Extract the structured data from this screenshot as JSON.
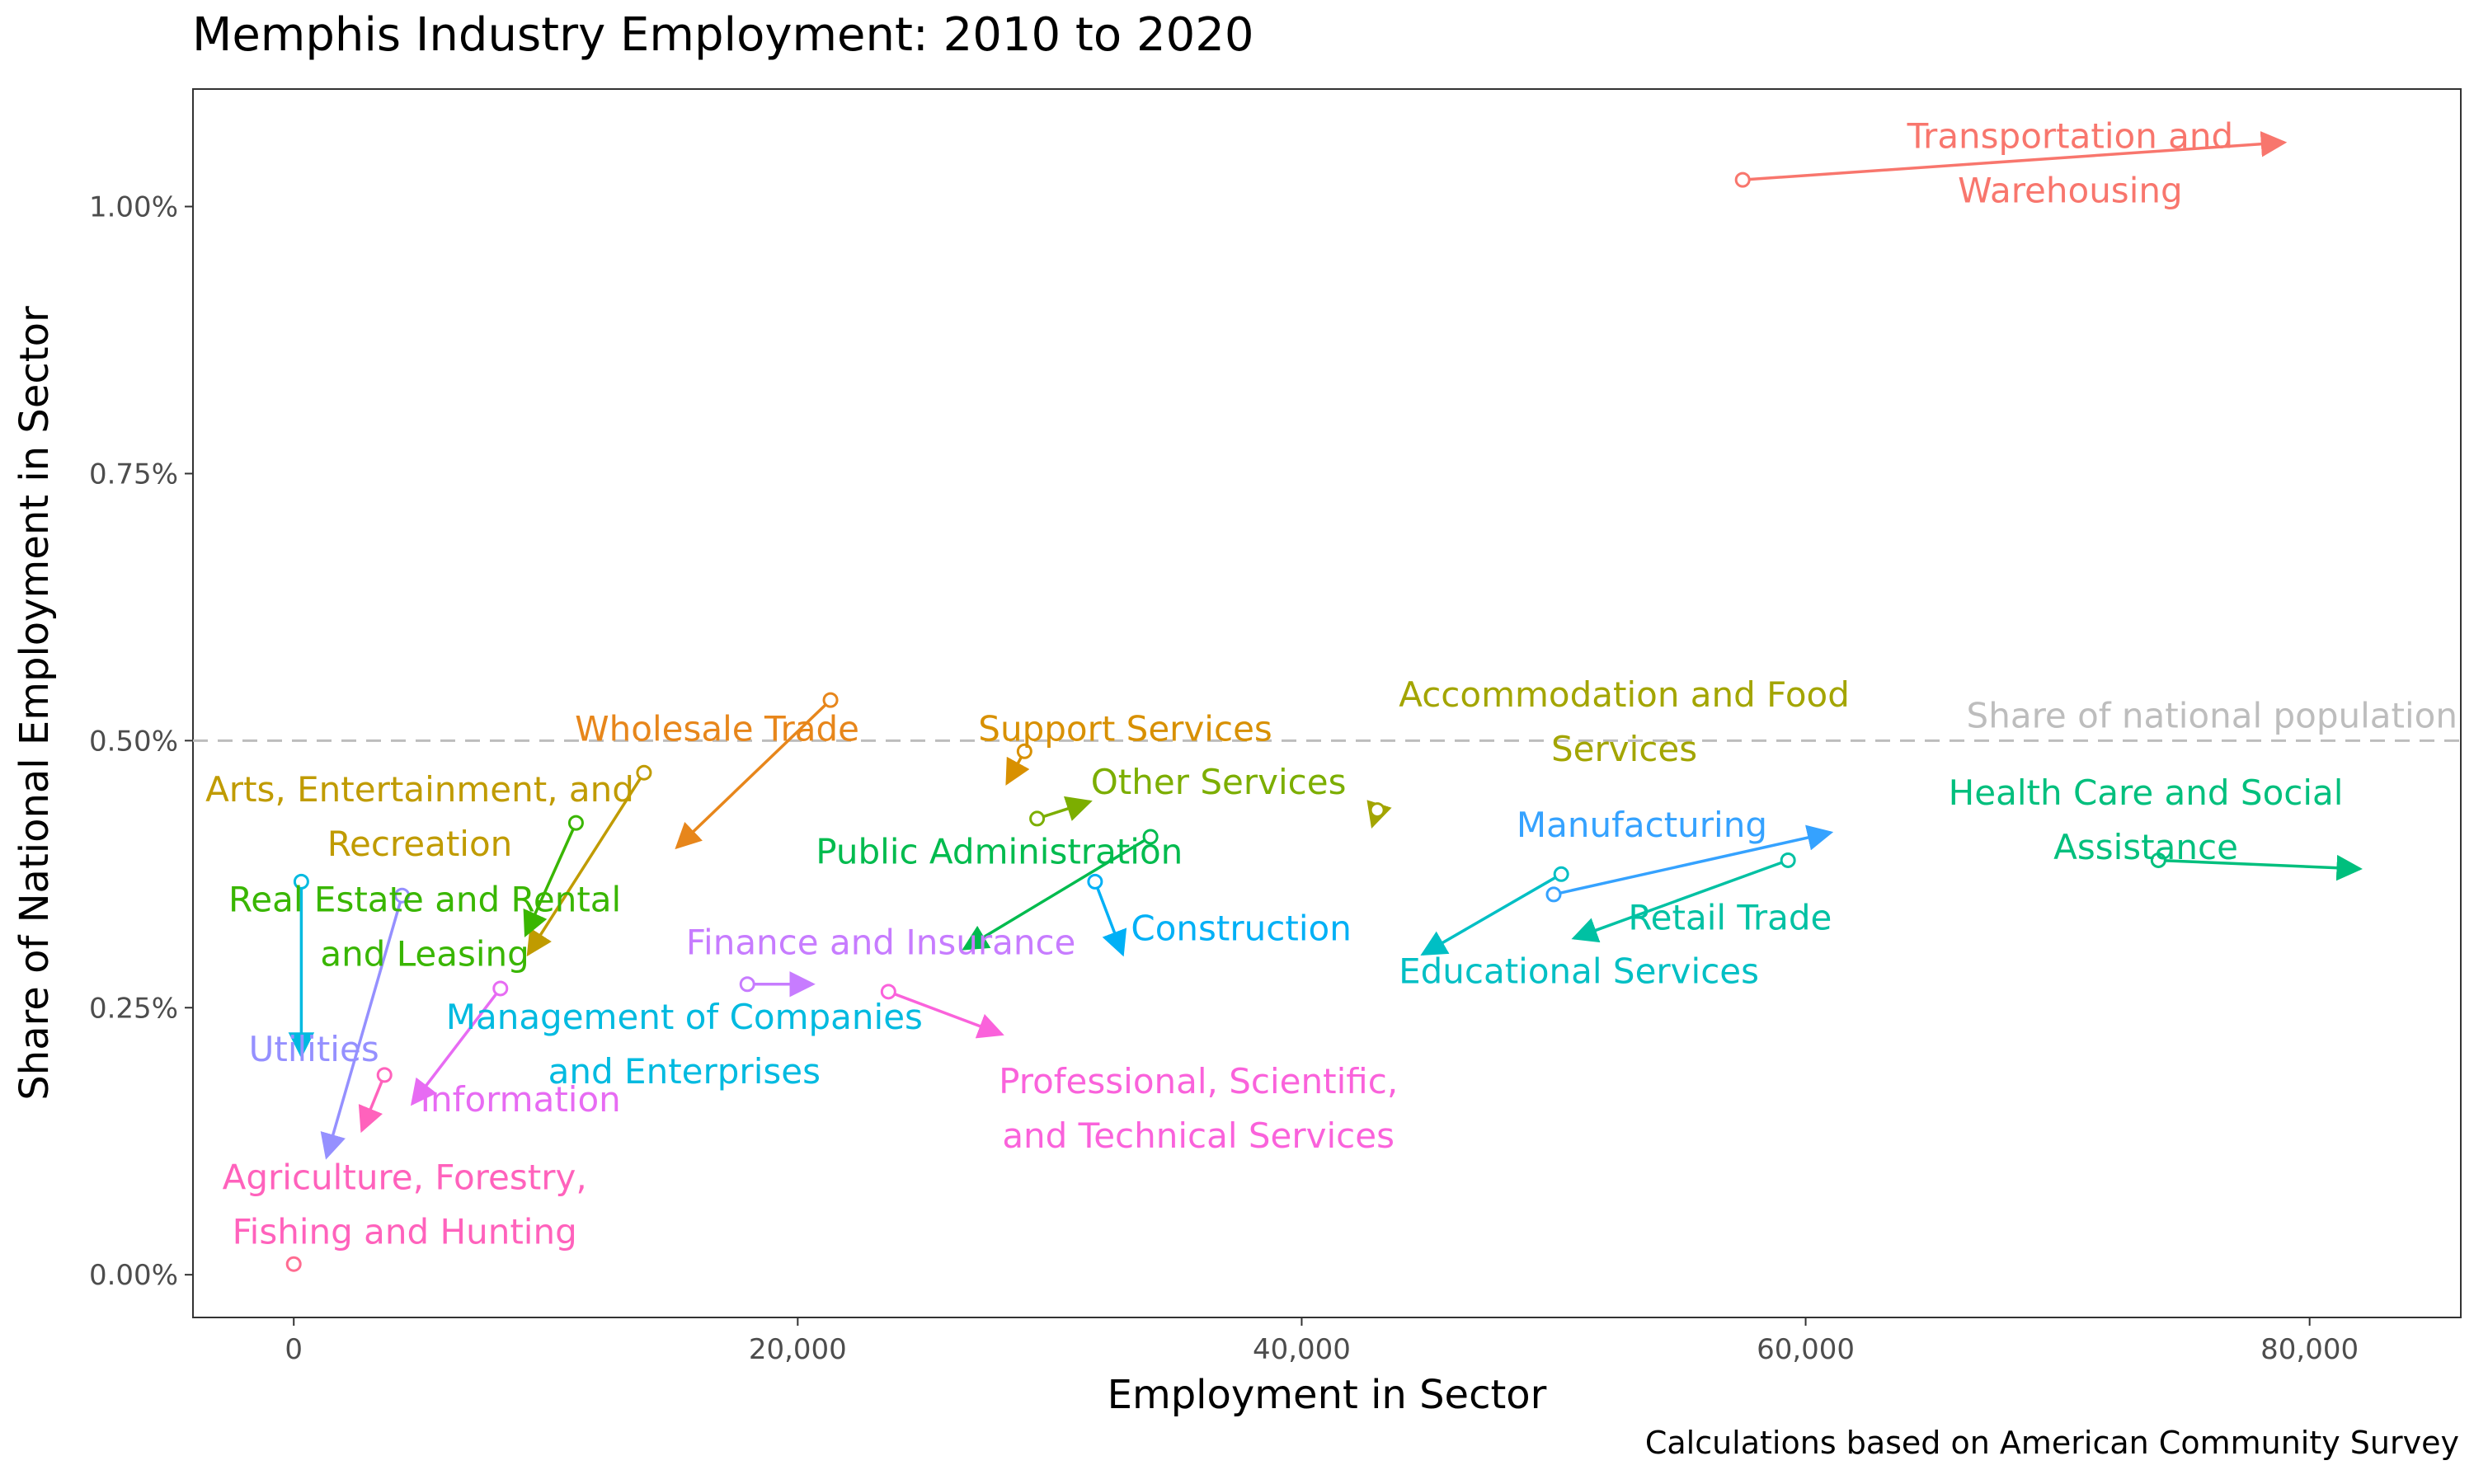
{
  "chart_data": {
    "type": "scatter",
    "title": "Memphis Industry Employment: 2010 to 2020",
    "caption": "Calculations based on American Community Survey",
    "xlabel": "Employment in Sector",
    "ylabel": "Share of National Employment in Sector",
    "xlim": [
      -4000,
      86000
    ],
    "ylim": [
      -0.04,
      1.11
    ],
    "x_ticks": [
      0,
      20000,
      40000,
      60000,
      80000
    ],
    "x_tick_labels": [
      "0",
      "20,000",
      "40,000",
      "60,000",
      "80,000"
    ],
    "y_ticks": [
      0,
      0.25,
      0.5,
      0.75,
      1.0
    ],
    "y_tick_labels": [
      "0.00%",
      "0.25%",
      "0.50%",
      "0.75%",
      "1.00%"
    ],
    "y_unit": "percent",
    "grid": false,
    "reference_line": {
      "y": 0.5,
      "label": "Share of national population",
      "color": "#bdbdbd"
    },
    "series": [
      {
        "name": "Transportation and Warehousing",
        "color": "#F8766D",
        "x2010": 57500,
        "y2010": 1.025,
        "x2020": 79000,
        "y2020": 1.06,
        "label_lines": [
          "Transportation and",
          "Warehousing"
        ],
        "label_x": 70500,
        "label_y": 1.055
      },
      {
        "name": "Wholesale Trade",
        "color": "#E7861B",
        "x2010": 21300,
        "y2010": 0.538,
        "x2020": 15200,
        "y2020": 0.4,
        "label_lines": [
          "Wholesale Trade"
        ],
        "label_x": 16800,
        "label_y": 0.5
      },
      {
        "name": "Support Services",
        "color": "#D89000",
        "x2010": 29000,
        "y2010": 0.49,
        "x2020": 28300,
        "y2020": 0.46,
        "label_lines": [
          "Support Services"
        ],
        "label_x": 33000,
        "label_y": 0.5
      },
      {
        "name": "Arts, Entertainment, and Recreation",
        "color": "#C09B00",
        "x2010": 13900,
        "y2010": 0.47,
        "x2020": 9300,
        "y2020": 0.3,
        "label_lines": [
          "Arts, Entertainment, and",
          "Recreation"
        ],
        "label_x": 5000,
        "label_y": 0.443
      },
      {
        "name": "Accommodation and Food Services",
        "color": "#A3A500",
        "x2010": 43000,
        "y2010": 0.435,
        "x2020": 42800,
        "y2020": 0.42,
        "label_lines": [
          "Accommodation and Food",
          "Services"
        ],
        "label_x": 52800,
        "label_y": 0.532
      },
      {
        "name": "Other Services",
        "color": "#7CAE00",
        "x2010": 29500,
        "y2010": 0.427,
        "x2020": 31600,
        "y2020": 0.443,
        "label_lines": [
          "Other Services"
        ],
        "label_x": 36700,
        "label_y": 0.45
      },
      {
        "name": "Real Estate and Rental and Leasing",
        "color": "#39B600",
        "x2010": 11200,
        "y2010": 0.423,
        "x2020": 9200,
        "y2020": 0.318,
        "label_lines": [
          "Real Estate and Rental",
          "and Leasing"
        ],
        "label_x": 5200,
        "label_y": 0.34
      },
      {
        "name": "Public Administration",
        "color": "#00BB4E",
        "x2010": 34000,
        "y2010": 0.41,
        "x2020": 26600,
        "y2020": 0.305,
        "label_lines": [
          "Public Administration"
        ],
        "label_x": 28000,
        "label_y": 0.385
      },
      {
        "name": "Health Care and Social Assistance",
        "color": "#00BF7D",
        "x2010": 74000,
        "y2010": 0.388,
        "x2020": 82000,
        "y2020": 0.38,
        "label_lines": [
          "Health Care and Social",
          "Assistance"
        ],
        "label_x": 73500,
        "label_y": 0.44
      },
      {
        "name": "Retail Trade",
        "color": "#00C1A3",
        "x2010": 59300,
        "y2010": 0.388,
        "x2020": 50800,
        "y2020": 0.315,
        "label_lines": [
          "Retail Trade"
        ],
        "label_x": 57000,
        "label_y": 0.323
      },
      {
        "name": "Educational Services",
        "color": "#00BFC4",
        "x2010": 50300,
        "y2010": 0.375,
        "x2020": 44800,
        "y2020": 0.3,
        "label_lines": [
          "Educational Services"
        ],
        "label_x": 51000,
        "label_y": 0.273
      },
      {
        "name": "Management of Companies and Enterprises",
        "color": "#00BAE0",
        "x2010": 300,
        "y2010": 0.368,
        "x2020": 300,
        "y2020": 0.205,
        "label_lines": [
          "Management of Companies",
          "and Enterprises"
        ],
        "label_x": 15500,
        "label_y": 0.23
      },
      {
        "name": "Construction",
        "color": "#00B0F6",
        "x2010": 31800,
        "y2010": 0.368,
        "x2020": 32900,
        "y2020": 0.3,
        "label_lines": [
          "Construction"
        ],
        "label_x": 37600,
        "label_y": 0.313
      },
      {
        "name": "Manufacturing",
        "color": "#35A2FF",
        "x2010": 50000,
        "y2010": 0.356,
        "x2020": 61000,
        "y2020": 0.414,
        "label_lines": [
          "Manufacturing"
        ],
        "label_x": 53500,
        "label_y": 0.41
      },
      {
        "name": "Utilities",
        "color": "#9590FF",
        "x2010": 4300,
        "y2010": 0.355,
        "x2020": 1300,
        "y2020": 0.11,
        "label_lines": [
          "Utilities"
        ],
        "label_x": 800,
        "label_y": 0.2
      },
      {
        "name": "Finance and Insurance",
        "color": "#C77CFF",
        "x2010": 18000,
        "y2010": 0.272,
        "x2020": 20600,
        "y2020": 0.272,
        "label_lines": [
          "Finance and Insurance"
        ],
        "label_x": 23300,
        "label_y": 0.3
      },
      {
        "name": "Information",
        "color": "#E76BF3",
        "x2010": 8200,
        "y2010": 0.268,
        "x2020": 4700,
        "y2020": 0.16,
        "label_lines": [
          "Information"
        ],
        "label_x": 9000,
        "label_y": 0.153
      },
      {
        "name": "Professional, Scientific, and Technical Services",
        "color": "#FA62DB",
        "x2010": 23600,
        "y2010": 0.265,
        "x2020": 28100,
        "y2020": 0.225,
        "label_lines": [
          "Professional, Scientific,",
          "and Technical Services"
        ],
        "label_x": 35900,
        "label_y": 0.17
      },
      {
        "name": "Agriculture, Forestry, Fishing and Hunting",
        "color": "#FF62BC",
        "x2010": 3600,
        "y2010": 0.187,
        "x2020": 2700,
        "y2020": 0.135,
        "label_lines": [
          "Agriculture, Forestry,",
          "Fishing and Hunting"
        ],
        "label_x": 4400,
        "label_y": 0.08
      },
      {
        "name": "",
        "color": "#FF6C91",
        "x2010": 0,
        "y2010": 0.01,
        "x2020": null,
        "y2020": null,
        "label_lines": [],
        "label_x": null,
        "label_y": null
      }
    ]
  }
}
